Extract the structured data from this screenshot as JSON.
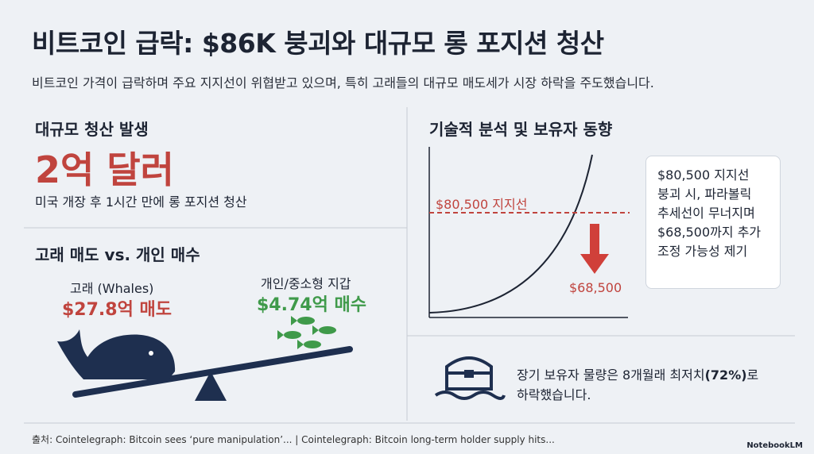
{
  "header": {
    "title": "비트코인 급락: $86K 붕괴와 대규모 롱 포지션 청산",
    "subtitle": "비트코인 가격이 급락하며 주요 지지선이 위협받고 있으며, 특히 고래들의 대규모 매도세가 시장 하락을 주도했습니다."
  },
  "liquidation": {
    "heading": "대규모 청산 발생",
    "amount": "2억 달러",
    "description": "미국 개장 후 1시간 만에 롱 포지션 청산"
  },
  "flows": {
    "heading": "고래 매도 vs. 개인 매수",
    "whale_label": "고래 (Whales)",
    "whale_value": "$27.8억 매도",
    "retail_label": "개인/중소형 지갑",
    "retail_value": "$4.74억 매수"
  },
  "technical": {
    "heading": "기술적 분석 및 보유자 동향",
    "support_label": "$80,500 지지선",
    "target_label": "$68,500",
    "note_lines": [
      "$80,500 지지선",
      "붕괴 시, 파라볼릭",
      "추세선이 무너지며",
      "$68,500까지 추가",
      "조정 가능성 제기"
    ]
  },
  "holders": {
    "line1_before": "장기 보유자 물량은 8개월래 최저치",
    "line1_bold": "(72%)",
    "line1_after": "로",
    "line2": "하락했습니다."
  },
  "footer": {
    "source": "출처: Cointelegraph: Bitcoin sees ‘pure manipulation’... | Cointelegraph: Bitcoin long-term holder supply hits...",
    "brand": "NotebookLM"
  }
}
